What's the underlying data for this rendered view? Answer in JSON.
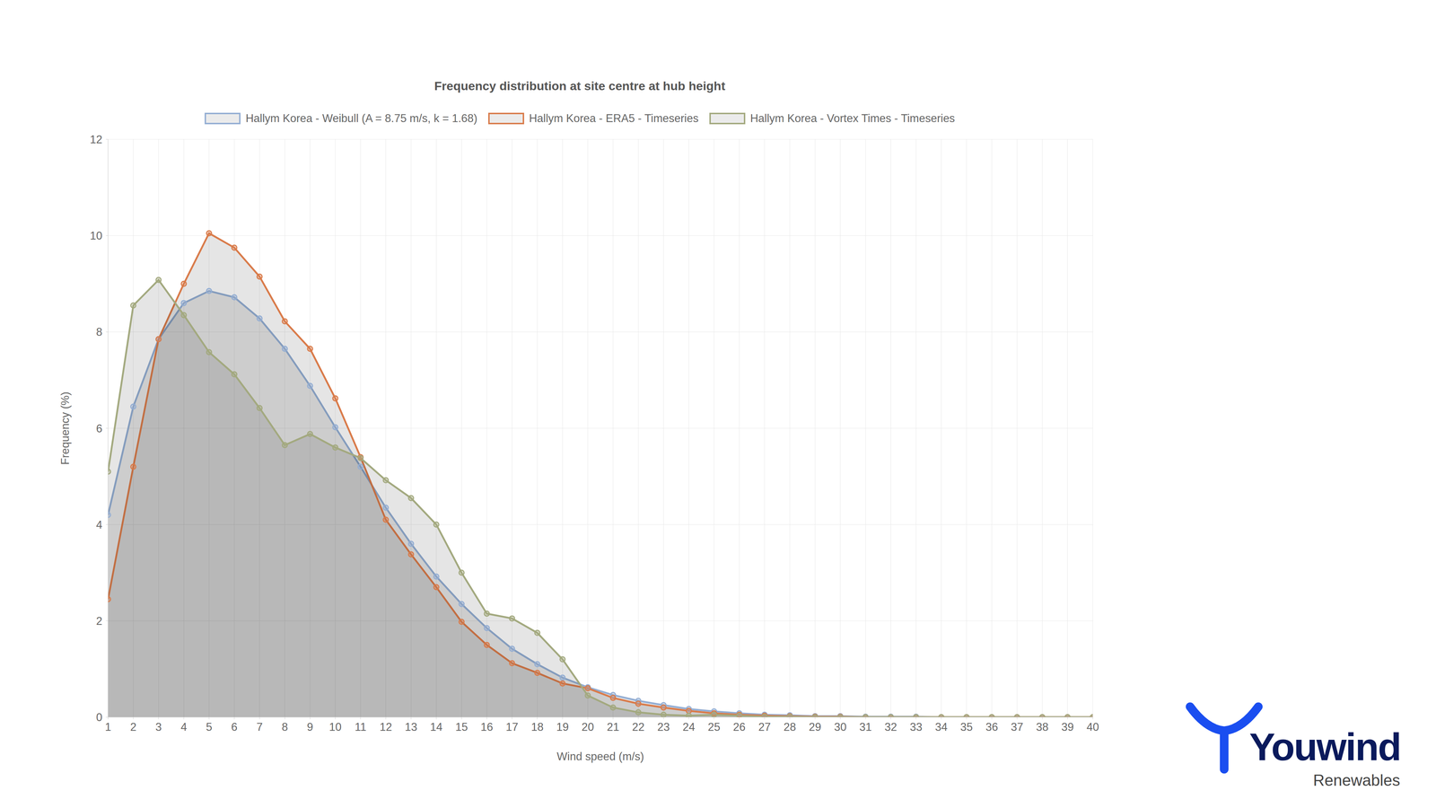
{
  "chart_data": {
    "type": "area",
    "title": "Frequency distribution at site centre at hub height",
    "x_label": "Wind speed (m/s)",
    "y_label": "Frequency (%)",
    "x": [
      1,
      2,
      3,
      4,
      5,
      6,
      7,
      8,
      9,
      10,
      11,
      12,
      13,
      14,
      15,
      16,
      17,
      18,
      19,
      20,
      21,
      22,
      23,
      24,
      25,
      26,
      27,
      28,
      29,
      30,
      31,
      32,
      33,
      34,
      35,
      36,
      37,
      38,
      39,
      40
    ],
    "series": [
      {
        "name": "Hallym Korea - Weibull (A = 8.75 m/s, k = 1.68)",
        "color": "#94aed3",
        "values": [
          4.2,
          6.45,
          7.85,
          8.6,
          8.85,
          8.72,
          8.28,
          7.65,
          6.88,
          6.02,
          5.2,
          4.35,
          3.6,
          2.92,
          2.35,
          1.85,
          1.42,
          1.1,
          0.82,
          0.62,
          0.46,
          0.34,
          0.25,
          0.17,
          0.12,
          0.08,
          0.05,
          0.04,
          0.02,
          0.02,
          0.01,
          0.01,
          0.01,
          0,
          0,
          0,
          0,
          0,
          0,
          0
        ]
      },
      {
        "name": "Hallym Korea - ERA5 - Timeseries",
        "color": "#d97b4a",
        "values": [
          2.45,
          5.2,
          7.85,
          9.0,
          10.05,
          9.75,
          9.15,
          8.22,
          7.65,
          6.62,
          5.4,
          4.1,
          3.38,
          2.7,
          1.98,
          1.5,
          1.12,
          0.92,
          0.7,
          0.6,
          0.4,
          0.28,
          0.2,
          0.13,
          0.08,
          0.05,
          0.03,
          0.02,
          0.01,
          0.01,
          0,
          0,
          0,
          0,
          0,
          0,
          0,
          0,
          0,
          0
        ]
      },
      {
        "name": "Hallym Korea - Vortex Times - Timeseries",
        "color": "#a3a97f",
        "values": [
          5.1,
          8.55,
          9.08,
          8.35,
          7.58,
          7.12,
          6.42,
          5.65,
          5.88,
          5.6,
          5.38,
          4.92,
          4.55,
          4.0,
          3.0,
          2.15,
          2.05,
          1.75,
          1.2,
          0.45,
          0.2,
          0.1,
          0.05,
          0.03,
          0.05,
          0.03,
          0.01,
          0.01,
          0,
          0,
          0,
          0,
          0,
          0,
          0,
          0,
          0,
          0,
          0,
          0
        ]
      }
    ],
    "xlim": [
      1,
      40
    ],
    "xticks": [
      1,
      2,
      3,
      4,
      5,
      6,
      7,
      8,
      9,
      10,
      11,
      12,
      13,
      14,
      15,
      16,
      17,
      18,
      19,
      20,
      21,
      22,
      23,
      24,
      25,
      26,
      27,
      28,
      29,
      30,
      31,
      32,
      33,
      34,
      35,
      36,
      37,
      38,
      39,
      40
    ],
    "ylim": [
      0,
      12
    ],
    "yticks": [
      0,
      2,
      4,
      6,
      8,
      10,
      12
    ],
    "grid": true,
    "legend": "top",
    "marker": "circle"
  },
  "logo": {
    "name": "Youwind",
    "tagline": "Renewables"
  }
}
